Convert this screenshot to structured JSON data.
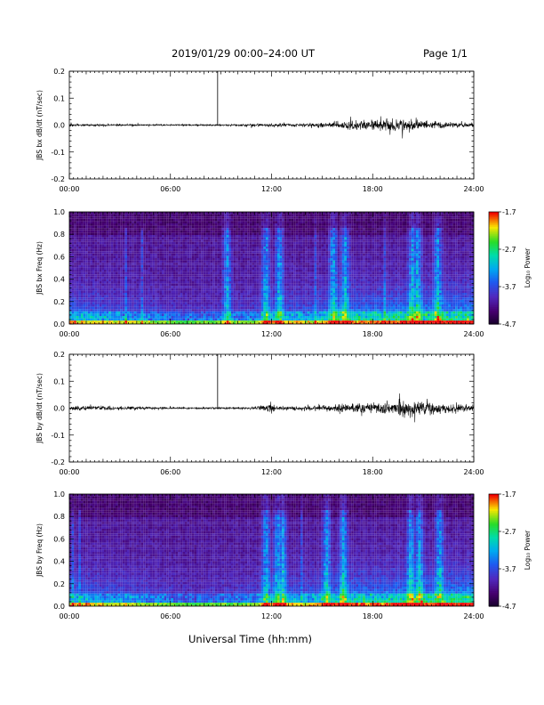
{
  "header": {
    "title": "2019/01/29  00:00–24:00 UT",
    "page": "Page 1/1"
  },
  "xlabel": "Universal Time (hh:mm)",
  "chart_data": [
    {
      "type": "line",
      "ylabel": "JBS bx dB/dt (nT/sec)",
      "xlim_hours": [
        0,
        24
      ],
      "x_ticks": [
        "00:00",
        "06:00",
        "12:00",
        "18:00",
        "24:00"
      ],
      "ylim": [
        -0.2,
        0.2
      ],
      "y_ticks": [
        "0.2",
        "0.1",
        "0.0",
        "-0.1",
        "-0.2"
      ],
      "series": [
        {
          "values": "noise around 0.00; spike to 0.2 near 09:00; enhanced activity 16:00-22:00 up to about 0.04"
        }
      ],
      "spike_hour": 8.8,
      "activity_envelope": [
        [
          0,
          0.008
        ],
        [
          6,
          0.005
        ],
        [
          9,
          0.005
        ],
        [
          11.5,
          0.009
        ],
        [
          12,
          0.012
        ],
        [
          14,
          0.01
        ],
        [
          15,
          0.018
        ],
        [
          16,
          0.022
        ],
        [
          18,
          0.03
        ],
        [
          19,
          0.04
        ],
        [
          20,
          0.035
        ],
        [
          21,
          0.028
        ],
        [
          22,
          0.022
        ],
        [
          24,
          0.015
        ]
      ]
    },
    {
      "type": "heatmap",
      "ylabel": "JBS bx Freq (Hz)",
      "xlim_hours": [
        0,
        24
      ],
      "x_ticks": [
        "00:00",
        "06:00",
        "12:00",
        "18:00",
        "24:00"
      ],
      "ylim": [
        0,
        1.0
      ],
      "y_ticks": [
        "1.0",
        "0.8",
        "0.6",
        "0.4",
        "0.2",
        "0.0"
      ],
      "colorbar": {
        "label": "Log₁₀ Power",
        "ticks": [
          "-1.7",
          "-2.7",
          "-3.7",
          "-4.7"
        ],
        "range": [
          -4.7,
          -1.7
        ]
      },
      "bright_streaks_hours": [
        9.3,
        11.6,
        12.4,
        15.6,
        16.3,
        20.3,
        20.6,
        21.8
      ]
    },
    {
      "type": "line",
      "ylabel": "JBS by dB/dt (nT/sec)",
      "xlim_hours": [
        0,
        24
      ],
      "x_ticks": [
        "00:00",
        "06:00",
        "12:00",
        "18:00",
        "24:00"
      ],
      "ylim": [
        -0.2,
        0.2
      ],
      "y_ticks": [
        "0.2",
        "0.1",
        "0.0",
        "-0.1",
        "-0.2"
      ],
      "series": [
        {
          "values": "noise around 0.00; spike to 0.2 near 09:00; bursts near 12:00 and 17:00-23:00 up to about 0.09"
        }
      ],
      "spike_hour": 8.8,
      "activity_envelope": [
        [
          0,
          0.015
        ],
        [
          3,
          0.012
        ],
        [
          6,
          0.006
        ],
        [
          9,
          0.006
        ],
        [
          11,
          0.008
        ],
        [
          12,
          0.03
        ],
        [
          12.5,
          0.012
        ],
        [
          14,
          0.012
        ],
        [
          16,
          0.022
        ],
        [
          18,
          0.035
        ],
        [
          19,
          0.045
        ],
        [
          20,
          0.05
        ],
        [
          21,
          0.045
        ],
        [
          22,
          0.035
        ],
        [
          24,
          0.02
        ]
      ]
    },
    {
      "type": "heatmap",
      "ylabel": "JBS by Freq (Hz)",
      "xlim_hours": [
        0,
        24
      ],
      "x_ticks": [
        "00:00",
        "06:00",
        "12:00",
        "18:00",
        "24:00"
      ],
      "ylim": [
        0,
        1.0
      ],
      "y_ticks": [
        "1.0",
        "0.8",
        "0.6",
        "0.4",
        "0.2",
        "0.0"
      ],
      "colorbar": {
        "label": "Log₁₀ Power",
        "ticks": [
          "-1.7",
          "-2.7",
          "-3.7",
          "-4.7"
        ],
        "range": [
          -4.7,
          -1.7
        ]
      },
      "bright_streaks_hours": [
        11.6,
        12.3,
        12.6,
        15.2,
        16.2,
        20.2,
        20.7,
        21.9
      ]
    }
  ]
}
